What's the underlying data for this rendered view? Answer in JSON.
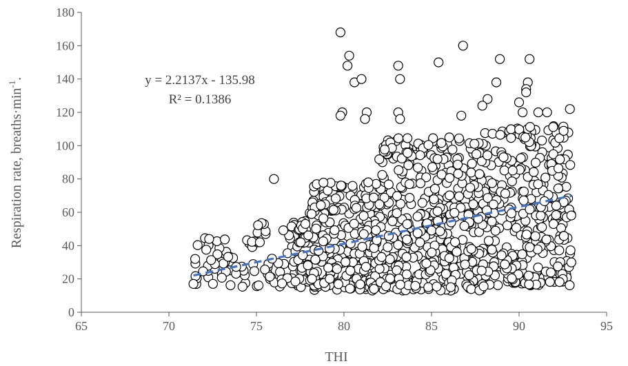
{
  "chart_data": {
    "type": "scatter",
    "xlabel": "THI",
    "ylabel_main": "Respiration rate, breaths·min",
    "ylabel_sup": "-1",
    "ylabel_end": ".",
    "xlim": [
      65,
      95
    ],
    "ylim": [
      0,
      180
    ],
    "x_ticks": [
      "65",
      "70",
      "75",
      "80",
      "85",
      "90",
      "95"
    ],
    "y_ticks": [
      "0",
      "20",
      "40",
      "60",
      "80",
      "100",
      "120",
      "140",
      "160",
      "180"
    ],
    "grid": false,
    "trendline": {
      "style": "dashed",
      "color": "#4472C4",
      "slope": 2.2137,
      "intercept": -135.98,
      "x_range": [
        71.4,
        93.0
      ],
      "equation": "y = 2.2137x - 135.98",
      "r_squared": "R² = 0.1386"
    },
    "highlight_points": [
      [
        79.8,
        168
      ],
      [
        86.8,
        160
      ],
      [
        80.3,
        154
      ],
      [
        88.9,
        152
      ],
      [
        90.6,
        152
      ],
      [
        85.4,
        150
      ],
      [
        80.2,
        148
      ],
      [
        83.1,
        148
      ],
      [
        80.6,
        138
      ],
      [
        81.0,
        140
      ],
      [
        88.7,
        138
      ],
      [
        90.5,
        138
      ],
      [
        90.4,
        134
      ],
      [
        90.4,
        132
      ],
      [
        83.2,
        140
      ],
      [
        79.9,
        120
      ],
      [
        79.8,
        118
      ],
      [
        81.3,
        120
      ],
      [
        81.2,
        116
      ],
      [
        83.1,
        120
      ],
      [
        83.2,
        116
      ],
      [
        86.7,
        118
      ],
      [
        90.2,
        120
      ],
      [
        91.1,
        120
      ],
      [
        91.6,
        120
      ],
      [
        92.9,
        122
      ],
      [
        90.0,
        126
      ],
      [
        88.2,
        128
      ],
      [
        87.9,
        124
      ],
      [
        76.0,
        80
      ],
      [
        72.3,
        44
      ],
      [
        71.4,
        17
      ],
      [
        71.5,
        32
      ]
    ]
  }
}
